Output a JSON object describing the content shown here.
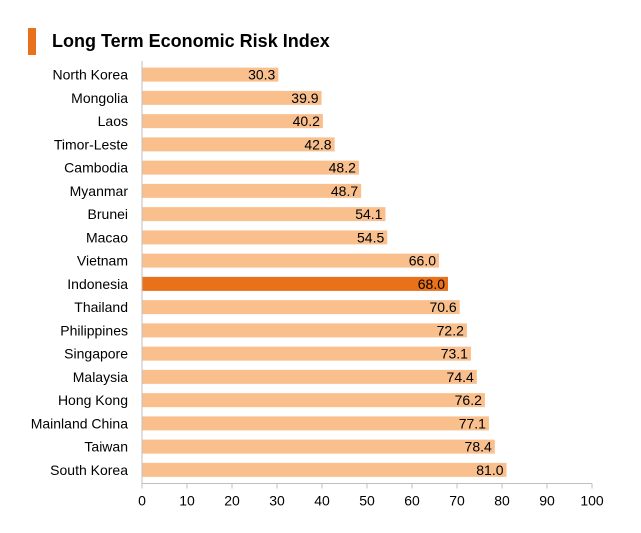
{
  "colors": {
    "accent": "#e8711a",
    "bar": "#f9c08e",
    "highlight": "#e8711a",
    "axis": "#bfbfbf",
    "text": "#000000"
  },
  "chart_data": {
    "type": "bar",
    "orientation": "horizontal",
    "title": "Long Term Economic Risk Index",
    "categories": [
      "North Korea",
      "Mongolia",
      "Laos",
      "Timor-Leste",
      "Cambodia",
      "Myanmar",
      "Brunei",
      "Macao",
      "Vietnam",
      "Indonesia",
      "Thailand",
      "Philippines",
      "Singapore",
      "Malaysia",
      "Hong Kong",
      "Mainland China",
      "Taiwan",
      "South Korea"
    ],
    "values": [
      30.3,
      39.9,
      40.2,
      42.8,
      48.2,
      48.7,
      54.1,
      54.5,
      66.0,
      68.0,
      70.6,
      72.2,
      73.1,
      74.4,
      76.2,
      77.1,
      78.4,
      81.0
    ],
    "data_labels": [
      "30.3",
      "39.9",
      "40.2",
      "42.8",
      "48.2",
      "48.7",
      "54.1",
      "54.5",
      "66.0",
      "68.0",
      "70.6",
      "72.2",
      "73.1",
      "74.4",
      "76.2",
      "77.1",
      "78.4",
      "81.0"
    ],
    "highlight": "Indonesia",
    "xlim": [
      0,
      100
    ],
    "xticks": [
      0,
      10,
      20,
      30,
      40,
      50,
      60,
      70,
      80,
      90,
      100
    ],
    "xlabel": "",
    "ylabel": "",
    "grid": false,
    "legend": "none"
  }
}
